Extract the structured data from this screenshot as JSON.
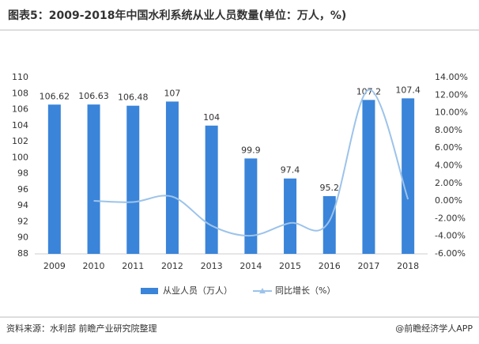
{
  "chart_data": {
    "type": "bar-line",
    "title": "图表5：2009-2018年中国水利系统从业人员数量(单位：万人，%)",
    "categories": [
      "2009",
      "2010",
      "2011",
      "2012",
      "2013",
      "2014",
      "2015",
      "2016",
      "2017",
      "2018"
    ],
    "series": [
      {
        "name": "从业人员（万人）",
        "type": "bar",
        "color": "#3a84d9",
        "values": [
          106.62,
          106.63,
          106.48,
          107,
          104,
          99.9,
          97.4,
          95.2,
          107.2,
          107.4
        ]
      },
      {
        "name": "同比增长（%）",
        "type": "line",
        "axis": "y2",
        "color": "#9cc3ea",
        "values": [
          null,
          0.01,
          -0.13,
          0.49,
          -2.8,
          -3.94,
          -2.5,
          -2.26,
          12.61,
          0.19
        ]
      }
    ],
    "ylim": [
      88,
      110
    ],
    "yticks": [
      88,
      90,
      92,
      94,
      96,
      98,
      100,
      102,
      104,
      106,
      108,
      110
    ],
    "y2lim": [
      -6,
      14
    ],
    "y2ticks": [
      {
        "value": -6,
        "label": "-6.00%"
      },
      {
        "value": -4,
        "label": "-4.00%"
      },
      {
        "value": -2,
        "label": "-2.00%"
      },
      {
        "value": 0,
        "label": "0.00%"
      },
      {
        "value": 2,
        "label": "2.00%"
      },
      {
        "value": 4,
        "label": "4.00%"
      },
      {
        "value": 6,
        "label": "6.00%"
      },
      {
        "value": 8,
        "label": "8.00%"
      },
      {
        "value": 10,
        "label": "10.00%"
      },
      {
        "value": 12,
        "label": "12.00%"
      },
      {
        "value": 14,
        "label": "14.00%"
      }
    ],
    "source": "资料来源：水利部 前瞻产业研究院整理",
    "credit": "@前瞻经济学人APP"
  }
}
